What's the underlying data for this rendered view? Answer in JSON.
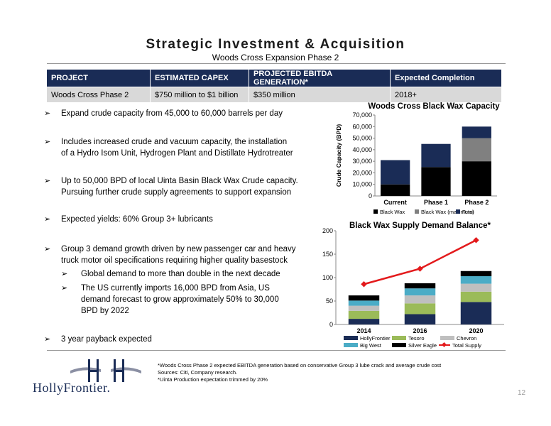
{
  "header": {
    "title": "Strategic Investment & Acquisition",
    "subtitle": "Woods Cross Expansion Phase 2"
  },
  "table": {
    "headers": [
      "PROJECT",
      "ESTIMATED CAPEX",
      "PROJECTED EBITDA GENERATION*",
      "Expected Completion"
    ],
    "row": [
      "Woods Cross Phase 2",
      "$750 million to $1 billion",
      "$350 million",
      "2018+"
    ]
  },
  "bullets": {
    "b1": "Expand crude capacity from 45,000 to 60,000 barrels per day",
    "b2a": "Includes increased crude and vacuum capacity, the installation",
    "b2b": "of a Hydro Isom Unit, Hydrogen Plant and Distillate Hydrotreater",
    "b3a": "Up to 50,000 BPD of local Uinta Basin Black Wax Crude capacity.",
    "b3b": "Pursuing further crude supply agreements to support expansion",
    "b4": "Expected yields: 60% Group 3+ lubricants",
    "b5a": "Group 3 demand growth driven by new passenger car and heavy",
    "b5b": "truck motor oil specifications requiring higher quality basestock",
    "s1": "Global demand to more than double in the next decade",
    "s2a": "The US currently imports 16,000 BPD from Asia, US",
    "s2b": "demand forecast to grow approximately 50% to 30,000",
    "s2c": "BPD by 2022",
    "b6": "3 year payback expected",
    "arrow_glyph": "➢"
  },
  "footnotes": {
    "f1": "*Woods Cross Phase 2 expected EBITDA generation based on conservative Group 3 lube crack and average crude cost",
    "f2": "Sources: Citi, Company research.",
    "f3": "*Uinta Production expectation trimmed by 20%"
  },
  "logo": {
    "text": "HollyFrontier."
  },
  "page_number": "12",
  "colors": {
    "navy": "#1a2c56",
    "black": "#000000",
    "gray": "#808080",
    "olive": "#9bbb59",
    "lightgray": "#bfbfbf",
    "teal": "#4bacc6",
    "red": "#e31a1c"
  },
  "chart_data": [
    {
      "type": "bar",
      "title": "Woods Cross Black Wax Capacity",
      "ylabel": "Crude Capacity (BPD)",
      "ylim": [
        0,
        70000
      ],
      "yticks": [
        "0",
        "10,000",
        "20,000",
        "30,000",
        "40,000",
        "50,000",
        "60,000",
        "70,000"
      ],
      "categories": [
        "Current",
        "Phase 1",
        "Phase 2"
      ],
      "series": [
        {
          "name": "Black Wax",
          "values": [
            10000,
            25000,
            30000
          ],
          "color": "#000000"
        },
        {
          "name": "Black Wax (maximum)",
          "values": [
            0,
            0,
            20000
          ],
          "color": "#808080"
        },
        {
          "name": "Total",
          "values": [
            21000,
            20000,
            10000
          ],
          "color": "#1a2c56"
        }
      ],
      "legend": "bottom"
    },
    {
      "type": "bar",
      "title": "Black Wax Supply  Demand Balance*",
      "ylim": [
        0,
        200
      ],
      "yticks": [
        "0",
        "50",
        "100",
        "150",
        "200"
      ],
      "categories": [
        "2014",
        "2016",
        "2020"
      ],
      "series": [
        {
          "name": "HollyFrontier",
          "values": [
            12,
            22,
            48
          ],
          "color": "#1a2c56"
        },
        {
          "name": "Tesoro",
          "values": [
            17,
            23,
            22
          ],
          "color": "#9bbb59"
        },
        {
          "name": "Chevron",
          "values": [
            11,
            17,
            17
          ],
          "color": "#bfbfbf"
        },
        {
          "name": "Big West",
          "values": [
            11,
            15,
            16
          ],
          "color": "#4bacc6"
        },
        {
          "name": "Silver Eagle",
          "values": [
            11,
            11,
            11
          ],
          "color": "#000000"
        }
      ],
      "line": {
        "name": "Total Supply",
        "values": [
          86,
          119,
          180
        ],
        "color": "#e31a1c"
      },
      "legend": "bottom"
    }
  ]
}
